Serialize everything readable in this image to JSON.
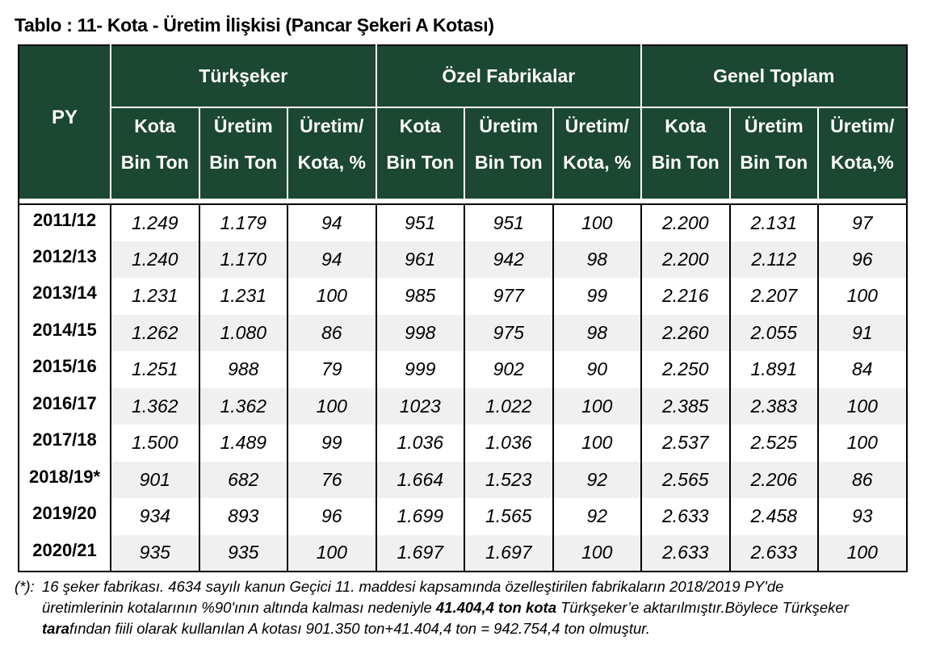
{
  "title": "Tablo : 11- Kota - Üretim İlişkisi (Pancar Şekeri A Kotası)",
  "table": {
    "py_header": "PY",
    "groups": [
      "Türkşeker",
      "Özel Fabrikalar",
      "Genel Toplam"
    ],
    "subheaders": [
      [
        "Kota",
        "Bin Ton"
      ],
      [
        "Üretim",
        "Bin Ton"
      ],
      [
        "Üretim/",
        "Kota, %"
      ],
      [
        "Kota",
        "Bin Ton"
      ],
      [
        "Üretim",
        "Bin Ton"
      ],
      [
        "Üretim/",
        "Kota, %"
      ],
      [
        "Kota",
        "Bin Ton"
      ],
      [
        "Üretim",
        "Bin Ton"
      ],
      [
        "Üretim/",
        "Kota,%"
      ]
    ],
    "rows": [
      {
        "py": "2011/12",
        "cells": [
          "1.249",
          "1.179",
          "94",
          "951",
          "951",
          "100",
          "2.200",
          "2.131",
          "97"
        ]
      },
      {
        "py": "2012/13",
        "cells": [
          "1.240",
          "1.170",
          "94",
          "961",
          "942",
          "98",
          "2.200",
          "2.112",
          "96"
        ]
      },
      {
        "py": "2013/14",
        "cells": [
          "1.231",
          "1.231",
          "100",
          "985",
          "977",
          "99",
          "2.216",
          "2.207",
          "100"
        ]
      },
      {
        "py": "2014/15",
        "cells": [
          "1.262",
          "1.080",
          "86",
          "998",
          "975",
          "98",
          "2.260",
          "2.055",
          "91"
        ]
      },
      {
        "py": "2015/16",
        "cells": [
          "1.251",
          "988",
          "79",
          "999",
          "902",
          "90",
          "2.250",
          "1.891",
          "84"
        ]
      },
      {
        "py": "2016/17",
        "cells": [
          "1.362",
          "1.362",
          "100",
          "1023",
          "1.022",
          "100",
          "2.385",
          "2.383",
          "100"
        ]
      },
      {
        "py": "2017/18",
        "cells": [
          "1.500",
          "1.489",
          "99",
          "1.036",
          "1.036",
          "100",
          "2.537",
          "2.525",
          "100"
        ]
      },
      {
        "py": "2018/19*",
        "cells": [
          "901",
          "682",
          "76",
          "1.664",
          "1.523",
          "92",
          "2.565",
          "2.206",
          "86"
        ]
      },
      {
        "py": "2019/20",
        "cells": [
          "934",
          "893",
          "96",
          "1.699",
          "1.565",
          "92",
          "2.633",
          "2.458",
          "93"
        ]
      },
      {
        "py": "2020/21",
        "cells": [
          "935",
          "935",
          "100",
          "1.697",
          "1.697",
          "100",
          "2.633",
          "2.633",
          "100"
        ]
      }
    ]
  },
  "footnote": {
    "mark": "(*):",
    "line1": "16 şeker fabrikası. 4634 sayılı kanun Geçici 11. maddesi kapsamında özelleştirilen fabrikaların 2018/2019 PY'de",
    "line2_a": "üretimlerinin kotalarının %90'ının altında kalması nedeniyle ",
    "line2_bold": "41.404,4 ton kota",
    "line2_b": " Türkşeker’e aktarılmıştır.Böylece  Türkşeker",
    "line3_bold": "tara",
    "line3_a": "fından fiili olarak kullanılan  A kotası 901.350 ton+41.404,4 ton = 942.754,4 ton olmuştur."
  }
}
